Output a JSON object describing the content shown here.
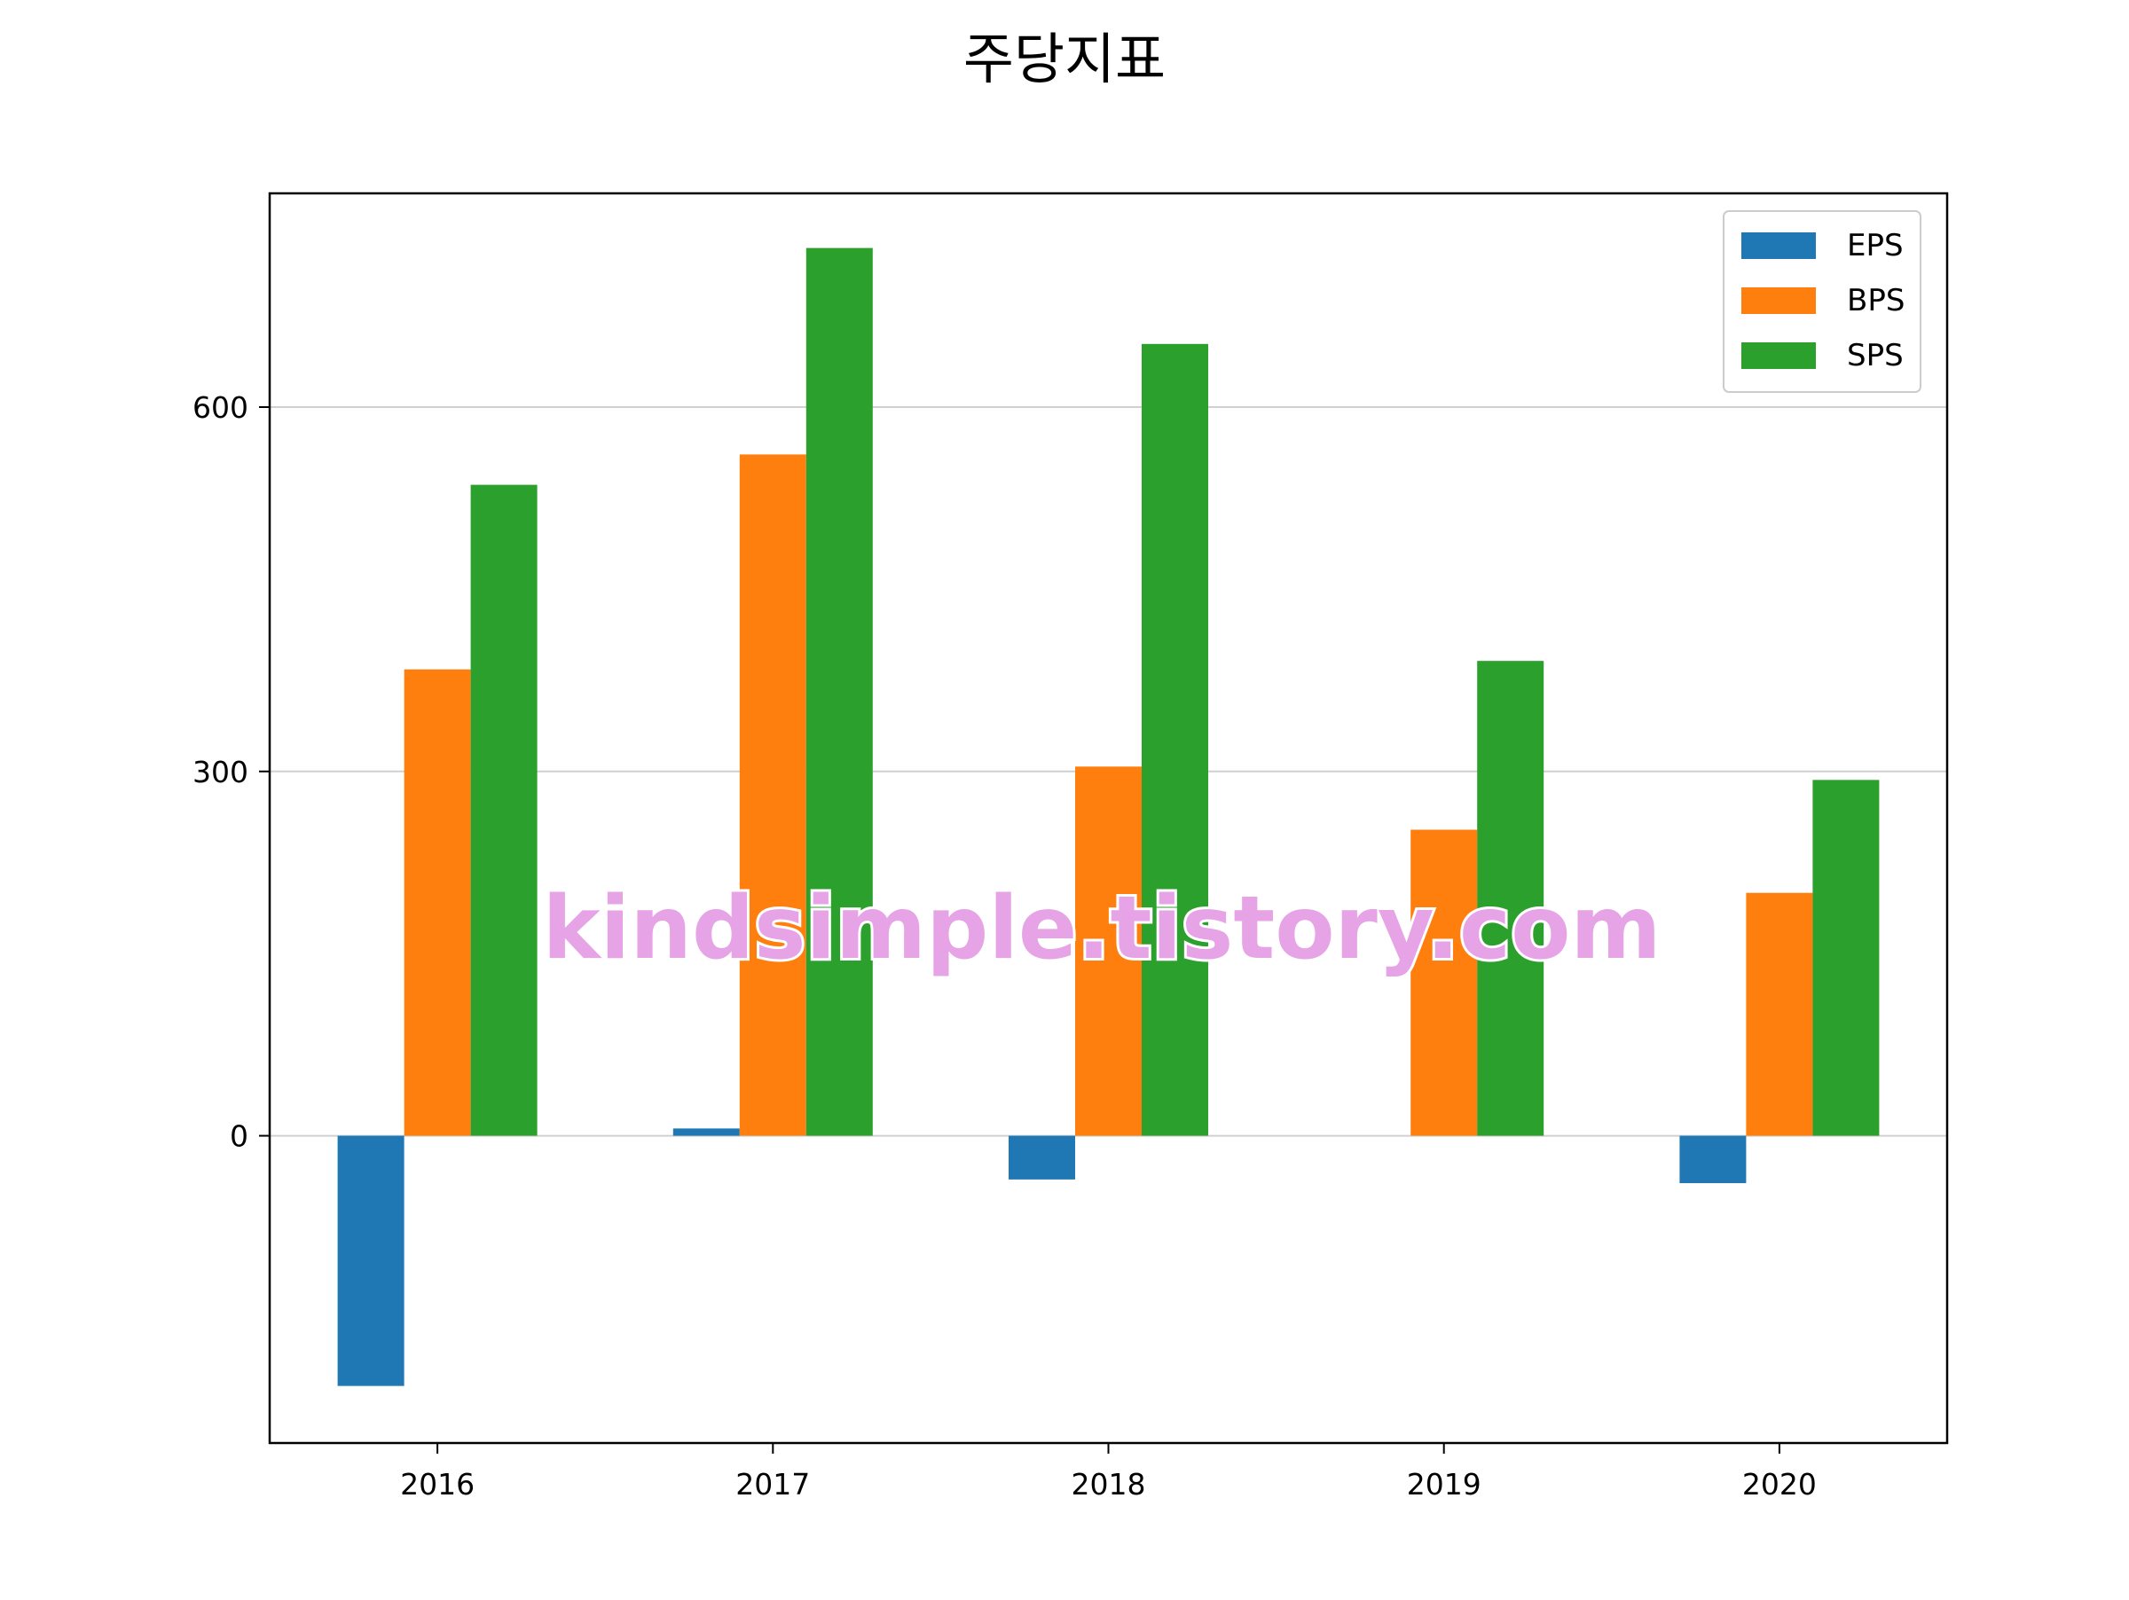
{
  "chart_data": {
    "type": "bar",
    "title": "주당지표",
    "xlabel": "",
    "ylabel": "",
    "categories": [
      "2016",
      "2017",
      "2018",
      "2019",
      "2020"
    ],
    "series": [
      {
        "name": "EPS",
        "color": "#1f77b4",
        "values": [
          -206,
          6,
          -36,
          0,
          -39
        ]
      },
      {
        "name": "BPS",
        "color": "#ff7f0e",
        "values": [
          384,
          561,
          304,
          252,
          200
        ]
      },
      {
        "name": "SPS",
        "color": "#2ca02c",
        "values": [
          536,
          731,
          652,
          391,
          293
        ]
      }
    ],
    "ylim": [
      -253,
      776
    ],
    "yticks": [
      0,
      300,
      600
    ],
    "grid": {
      "y": true,
      "x": false
    },
    "legend": {
      "position": "top-right"
    }
  },
  "watermark": {
    "text": "kindsimple.tistory.com",
    "color": "#e6a3e6"
  }
}
